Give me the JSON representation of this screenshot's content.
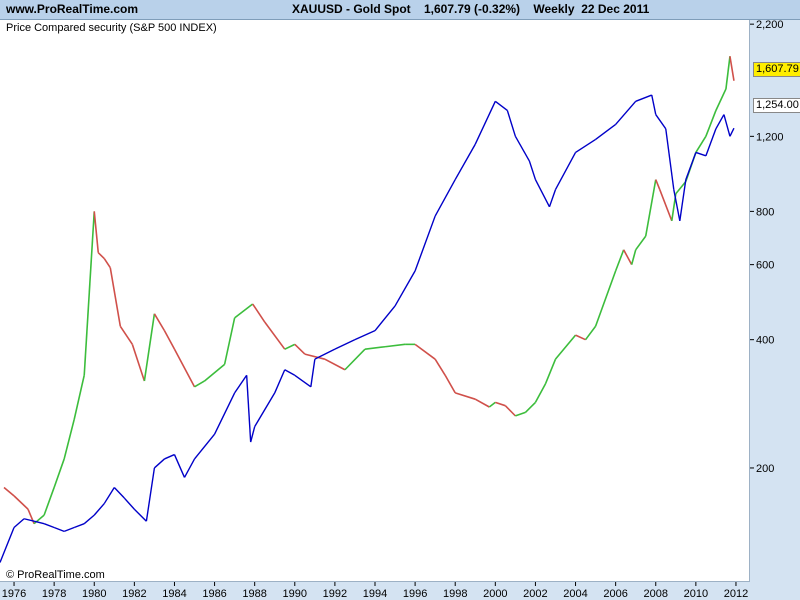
{
  "header": {
    "site": "www.ProRealTime.com",
    "title": "XAUUSD - Gold Spot    1,607.79 (-0.32%)    Weekly  22 Dec 2011"
  },
  "plot_label": "Price Compared security (S&P 500 INDEX)",
  "copyright": "© ProRealTime.com",
  "flags": {
    "gold": "1,607.79",
    "spx": "1,254.00"
  },
  "colors": {
    "gold_up": "#3cbd3c",
    "gold_down": "#d0504a",
    "spx": "#0000c8",
    "gold_flag_bg": "#ffee00"
  },
  "chart_data": {
    "type": "line",
    "title": "XAUUSD - Gold Spot",
    "xlabel": "",
    "ylabel": "",
    "y_scale": "log",
    "ylim": [
      108,
      2250
    ],
    "xlim": [
      1975.3,
      2012.7
    ],
    "x_ticks": [
      "1976",
      "1978",
      "1980",
      "1982",
      "1984",
      "1986",
      "1988",
      "1990",
      "1992",
      "1994",
      "1996",
      "1998",
      "2000",
      "2002",
      "2004",
      "2006",
      "2008",
      "2010",
      "2012"
    ],
    "y_ticks": [
      "200",
      "400",
      "600",
      "800",
      "1,200",
      "2,200"
    ],
    "legend": "none",
    "grid": false,
    "series": [
      {
        "name": "XAUUSD - Gold Spot",
        "x": [
          1975.5,
          1976,
          1976.7,
          1977,
          1977.5,
          1978,
          1978.5,
          1979,
          1979.5,
          1980.0,
          1980.2,
          1980.5,
          1980.8,
          1981.3,
          1981.9,
          1982.5,
          1983.0,
          1983.5,
          1984.0,
          1985.0,
          1985.5,
          1986.5,
          1987.0,
          1987.9,
          1988.5,
          1989.5,
          1990.0,
          1990.5,
          1991.5,
          1992.5,
          1993.5,
          1994.5,
          1995.5,
          1996.0,
          1997.0,
          1997.5,
          1998.0,
          1999.0,
          1999.7,
          2000.0,
          2000.5,
          2001.0,
          2001.5,
          2002.0,
          2002.5,
          2003.0,
          2004.0,
          2004.5,
          2005.0,
          2006.0,
          2006.4,
          2006.8,
          2007.0,
          2007.5,
          2008.0,
          2008.2,
          2008.8,
          2009.0,
          2009.5,
          2010.0,
          2010.5,
          2011.0,
          2011.5,
          2011.7,
          2011.9
        ],
        "y": [
          180,
          172,
          160,
          148,
          155,
          180,
          210,
          260,
          330,
          800,
          640,
          620,
          590,
          430,
          390,
          320,
          460,
          420,
          380,
          310,
          320,
          350,
          450,
          485,
          440,
          380,
          390,
          370,
          360,
          340,
          380,
          385,
          390,
          390,
          360,
          330,
          300,
          290,
          278,
          285,
          280,
          265,
          270,
          285,
          315,
          360,
          410,
          400,
          430,
          580,
          650,
          600,
          650,
          700,
          950,
          900,
          760,
          880,
          940,
          1100,
          1200,
          1380,
          1550,
          1850,
          1620
        ]
      },
      {
        "name": "S&P 500 INDEX",
        "x": [
          1975.3,
          1976,
          1976.5,
          1977,
          1977.5,
          1978,
          1978.5,
          1979,
          1979.5,
          1980,
          1980.5,
          1981,
          1981.5,
          1982,
          1982.6,
          1983,
          1983.5,
          1984,
          1984.5,
          1985,
          1986,
          1987,
          1987.6,
          1987.8,
          1988,
          1989,
          1989.5,
          1990,
          1990.8,
          1991,
          1992,
          1993,
          1994,
          1995,
          1996,
          1997,
          1998,
          1999,
          2000,
          2000.6,
          2001,
          2001.7,
          2002,
          2002.7,
          2003,
          2004,
          2005,
          2006,
          2007,
          2007.8,
          2008,
          2008.5,
          2008.9,
          2009.2,
          2009.5,
          2010,
          2010.5,
          2011,
          2011.4,
          2011.7,
          2011.9
        ],
        "y": [
          120,
          145,
          152,
          150,
          148,
          145,
          142,
          145,
          148,
          155,
          165,
          180,
          170,
          160,
          150,
          200,
          210,
          215,
          190,
          210,
          240,
          300,
          330,
          230,
          250,
          300,
          340,
          330,
          310,
          360,
          380,
          400,
          420,
          480,
          580,
          780,
          950,
          1150,
          1450,
          1380,
          1200,
          1050,
          950,
          820,
          900,
          1100,
          1180,
          1280,
          1450,
          1500,
          1350,
          1250,
          900,
          760,
          950,
          1100,
          1080,
          1250,
          1350,
          1200,
          1254
        ]
      }
    ]
  }
}
